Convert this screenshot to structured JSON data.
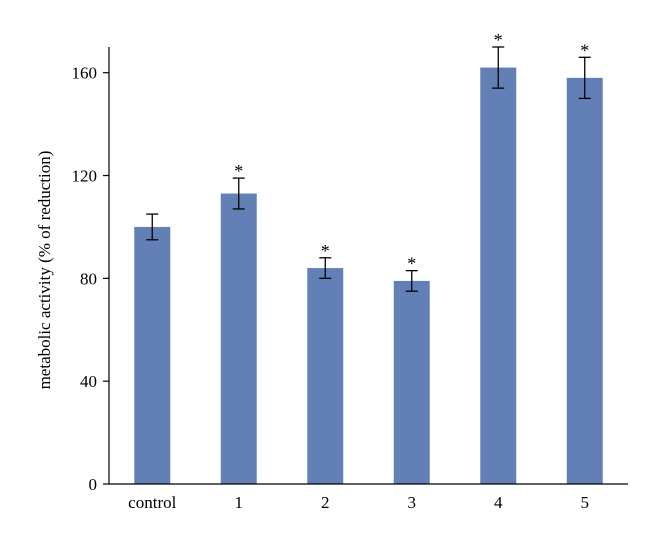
{
  "chart_data": {
    "type": "bar",
    "categories": [
      "control",
      "1",
      "2",
      "3",
      "4",
      "5"
    ],
    "values": [
      100,
      113,
      84,
      79,
      162,
      158
    ],
    "errors": [
      5,
      6,
      4,
      4,
      8,
      8
    ],
    "significance": [
      "",
      "*",
      "*",
      "*",
      "*",
      "*"
    ],
    "title": "",
    "xlabel": "",
    "ylabel": "metabolic activity (% of reduction)",
    "ylim": [
      0,
      170
    ],
    "yticks": [
      0,
      40,
      80,
      120,
      160
    ],
    "grid": false,
    "colors": {
      "bar": "#6280b5",
      "axis": "#000000"
    }
  }
}
